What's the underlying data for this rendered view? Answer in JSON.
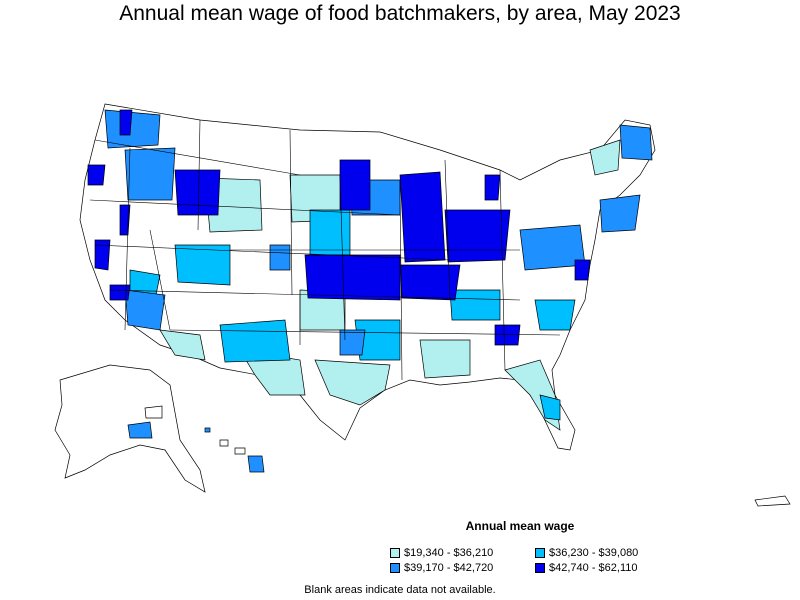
{
  "title": "Annual mean wage of food batchmakers, by area, May 2023",
  "legend": {
    "title": "Annual mean wage",
    "items": [
      {
        "label": "$19,340 - $36,210",
        "color": "#b2f0f0"
      },
      {
        "label": "$36,230 - $39,080",
        "color": "#00bfff"
      },
      {
        "label": "$39,170 - $42,720",
        "color": "#1e90ff"
      },
      {
        "label": "$42,740 - $62,110",
        "color": "#0000ee"
      }
    ]
  },
  "footnote": "Blank areas indicate data not available.",
  "colors": {
    "no_data": "#ffffff",
    "border": "#000000"
  }
}
